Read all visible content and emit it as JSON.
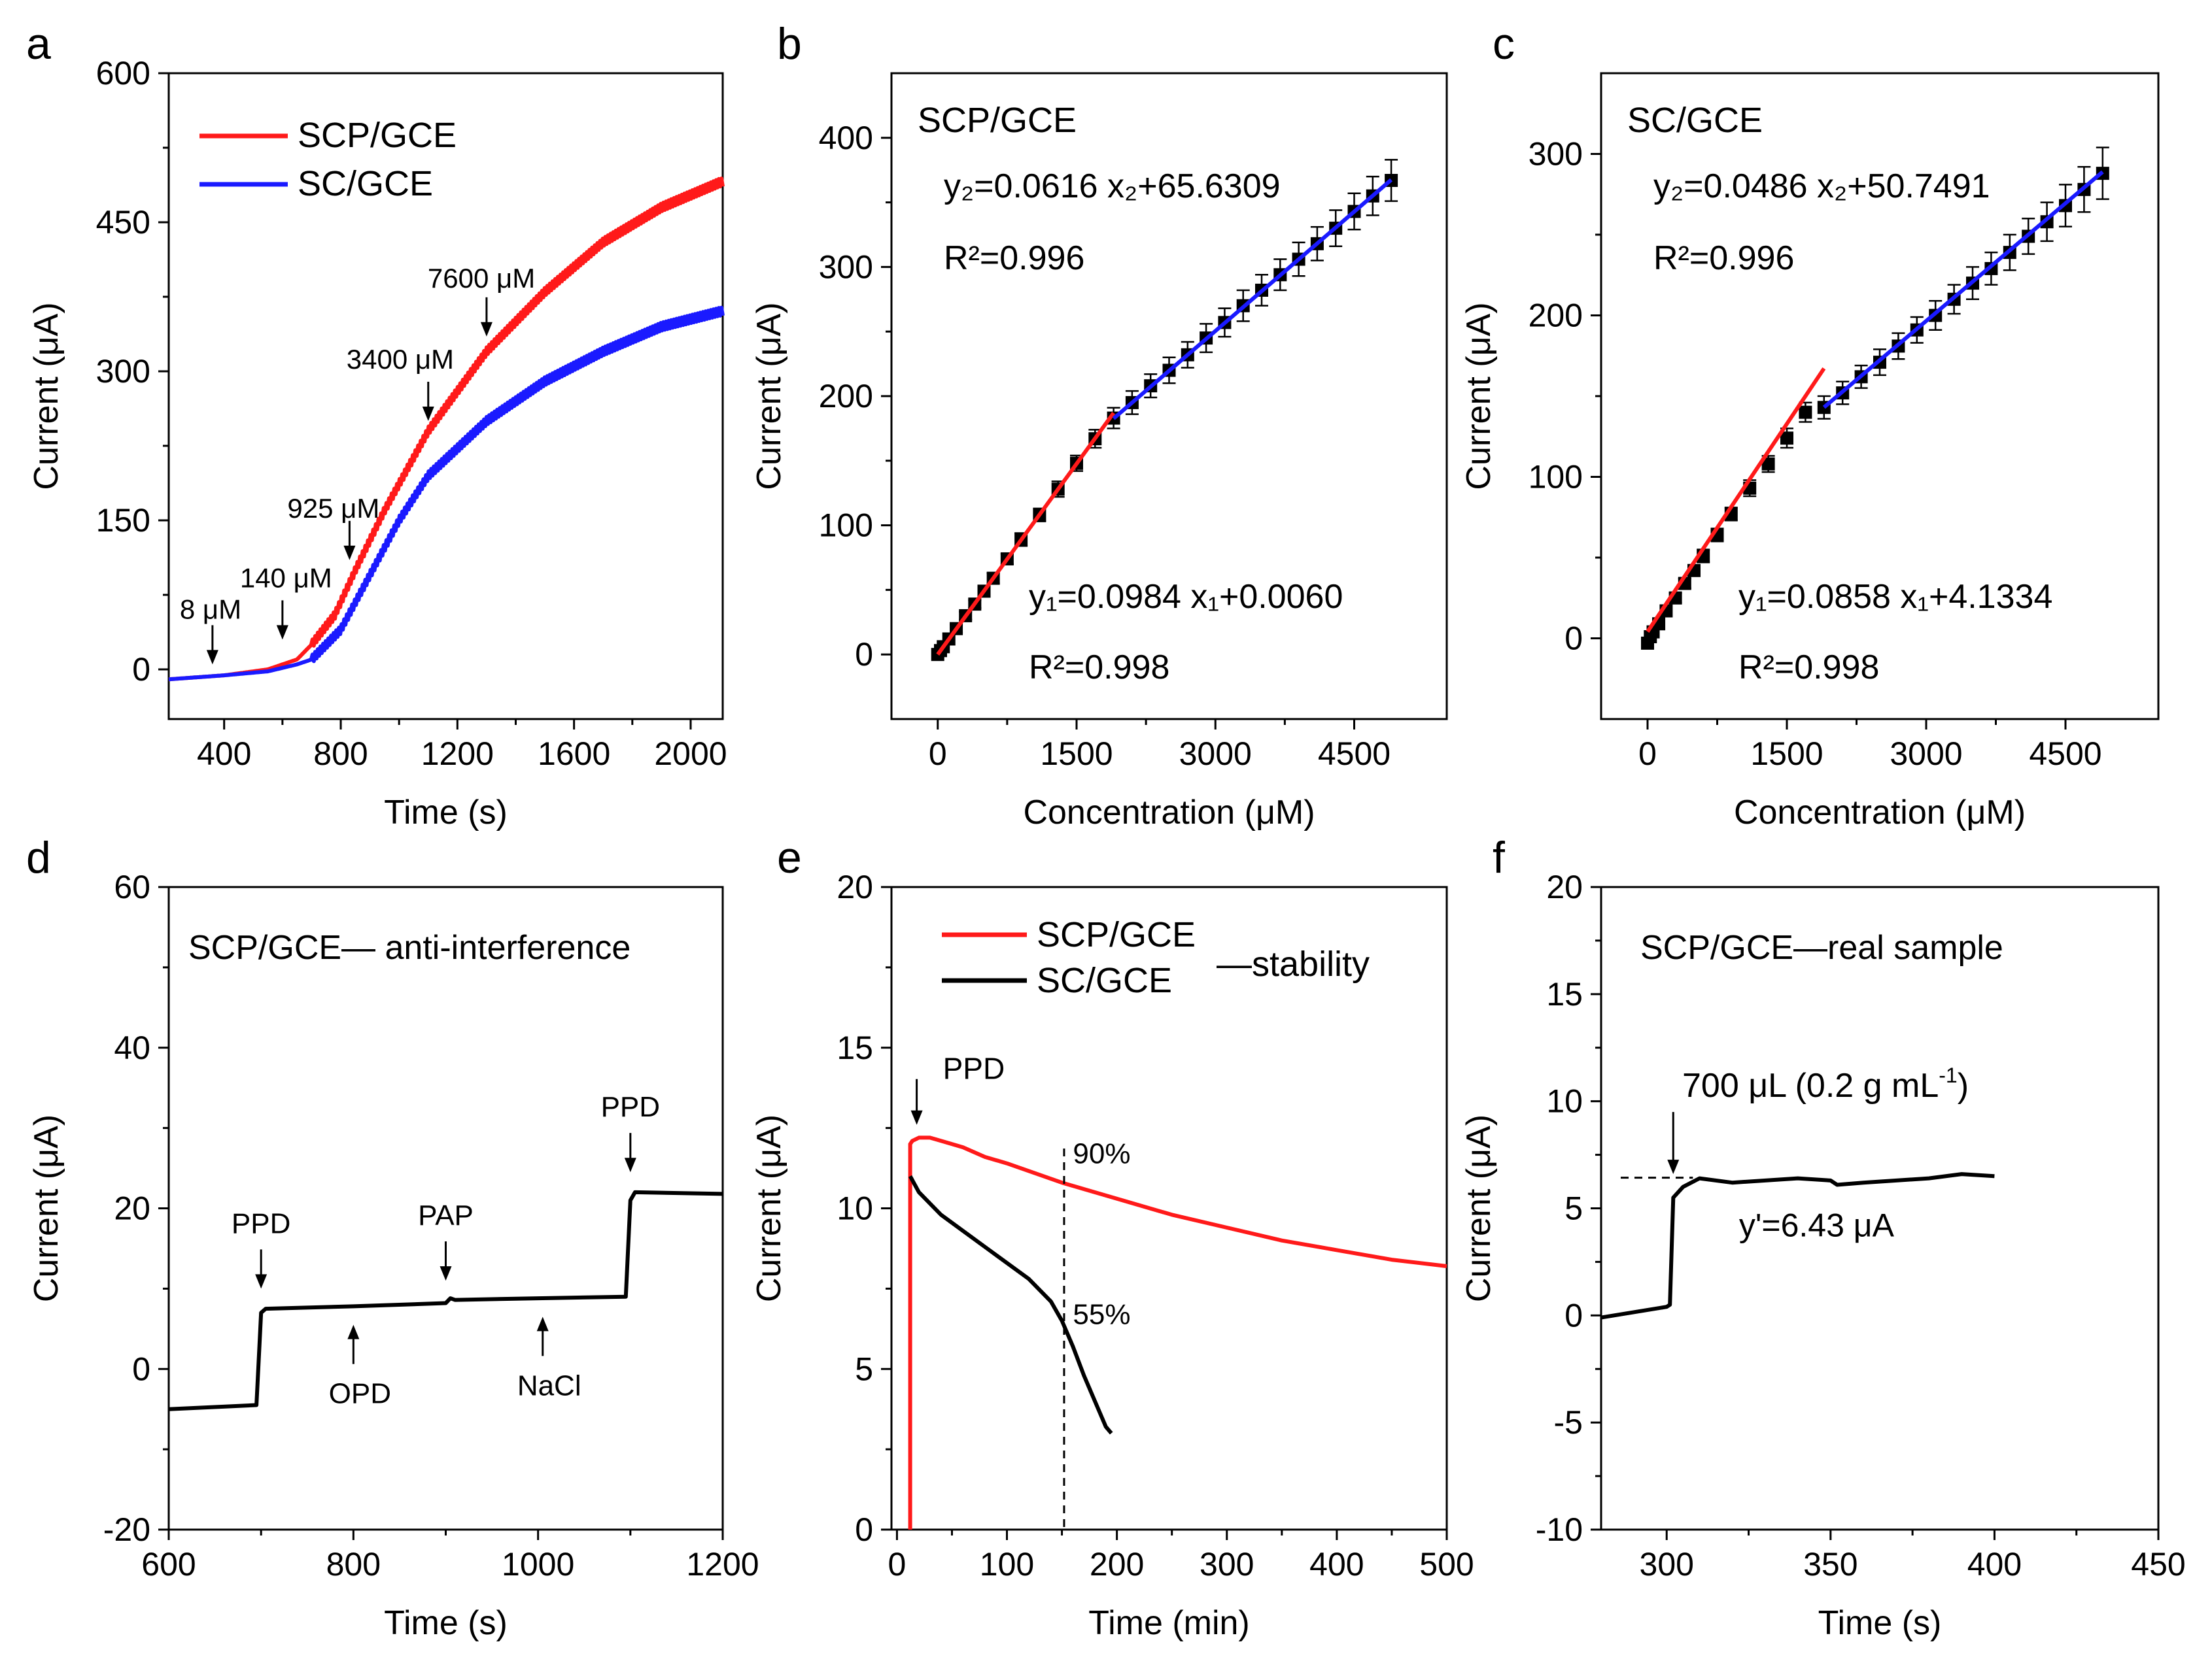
{
  "chart_data": [
    {
      "panel": "a",
      "type": "line",
      "xlabel": "Time (s)",
      "ylabel": "Current (μA)",
      "xlim": [
        210,
        2110
      ],
      "ylim": [
        -50,
        600
      ],
      "xticks": [
        400,
        800,
        1200,
        1600,
        2000
      ],
      "yticks": [
        0,
        150,
        300,
        450,
        600
      ],
      "series": [
        {
          "name": "SCP/GCE",
          "color": "#ff1a1a",
          "x": [
            210,
            400,
            550,
            650,
            700,
            780,
            850,
            950,
            1100,
            1300,
            1500,
            1700,
            1900,
            2100
          ],
          "y": [
            -10,
            -6,
            0,
            10,
            25,
            55,
            100,
            160,
            240,
            320,
            380,
            430,
            465,
            490
          ]
        },
        {
          "name": "SC/GCE",
          "color": "#1a1aff",
          "x": [
            210,
            400,
            550,
            650,
            700,
            800,
            900,
            1000,
            1100,
            1300,
            1500,
            1700,
            1900,
            2100
          ],
          "y": [
            -10,
            -6,
            -2,
            5,
            10,
            40,
            95,
            150,
            195,
            250,
            290,
            320,
            345,
            360
          ]
        }
      ],
      "annotations": [
        {
          "text": "8 μM",
          "x": 360,
          "y": 5
        },
        {
          "text": "140 μM",
          "x": 600,
          "y": 30
        },
        {
          "text": "925 μM",
          "x": 830,
          "y": 110
        },
        {
          "text": "3400 μM",
          "x": 1100,
          "y": 250
        },
        {
          "text": "7600 μM",
          "x": 1300,
          "y": 335
        }
      ]
    },
    {
      "panel": "b",
      "type": "scatter",
      "title": "SCP/GCE",
      "xlabel": "Concentration (μM)",
      "ylabel": "Current (μA)",
      "xlim": [
        -500,
        5500
      ],
      "ylim": [
        -50,
        450
      ],
      "xticks": [
        0,
        1500,
        3000,
        4500
      ],
      "yticks": [
        0,
        100,
        200,
        300,
        400
      ],
      "points": {
        "x": [
          0,
          30,
          60,
          120,
          200,
          300,
          400,
          500,
          600,
          750,
          900,
          1100,
          1300,
          1500,
          1700,
          1900,
          2100,
          2300,
          2500,
          2700,
          2900,
          3100,
          3300,
          3500,
          3700,
          3900,
          4100,
          4300,
          4500,
          4700,
          4900
        ],
        "y": [
          0,
          3,
          6,
          12,
          20,
          30,
          39,
          49,
          59,
          74,
          89,
          108,
          128,
          148,
          167,
          183,
          195,
          208,
          220,
          232,
          245,
          257,
          270,
          282,
          294,
          306,
          318,
          330,
          343,
          355,
          367
        ],
        "err": [
          1,
          1,
          2,
          2,
          3,
          3,
          3,
          4,
          4,
          4,
          5,
          5,
          6,
          6,
          7,
          8,
          9,
          9,
          10,
          10,
          11,
          11,
          12,
          12,
          12,
          13,
          13,
          14,
          14,
          15,
          16
        ]
      },
      "fits": [
        {
          "name": "y1",
          "color": "#ff1a1a",
          "slope": 0.0984,
          "intercept": 0.006,
          "x_range": [
            0,
            1900
          ]
        },
        {
          "name": "y2",
          "color": "#1a1aff",
          "slope": 0.0616,
          "intercept": 65.6309,
          "x_range": [
            1900,
            4900
          ]
        }
      ],
      "eq2": {
        "text": "y₂=0.0616 x₂+65.6309",
        "r2": "R²=0.996"
      },
      "eq1": {
        "text": "y₁=0.0984 x₁+0.0060",
        "r2": "R²=0.998"
      }
    },
    {
      "panel": "c",
      "type": "scatter",
      "title": "SC/GCE",
      "xlabel": "Concentration (μM)",
      "ylabel": "Current (μA)",
      "xlim": [
        -500,
        5500
      ],
      "ylim": [
        -50,
        350
      ],
      "xticks": [
        0,
        1500,
        3000,
        4500
      ],
      "yticks": [
        0,
        100,
        200,
        300
      ],
      "points": {
        "x": [
          0,
          30,
          60,
          120,
          200,
          300,
          400,
          500,
          600,
          750,
          900,
          1100,
          1300,
          1500,
          1700,
          1900,
          2100,
          2300,
          2500,
          2700,
          2900,
          3100,
          3300,
          3500,
          3700,
          3900,
          4100,
          4300,
          4500,
          4700,
          4900
        ],
        "y": [
          -3,
          1,
          4,
          9,
          17,
          25,
          34,
          42,
          51,
          64,
          77,
          93,
          108,
          124,
          140,
          143,
          152,
          162,
          171,
          181,
          191,
          200,
          210,
          220,
          229,
          239,
          249,
          258,
          268,
          278,
          288
        ],
        "err": [
          1,
          1,
          2,
          2,
          2,
          3,
          3,
          3,
          4,
          4,
          4,
          5,
          5,
          6,
          6,
          7,
          7,
          7,
          8,
          8,
          8,
          9,
          9,
          10,
          10,
          11,
          11,
          12,
          13,
          14,
          16
        ]
      },
      "fits": [
        {
          "name": "y1",
          "color": "#ff1a1a",
          "slope": 0.0858,
          "intercept": 4.1334,
          "x_range": [
            0,
            1900
          ]
        },
        {
          "name": "y2",
          "color": "#1a1aff",
          "slope": 0.0486,
          "intercept": 50.7491,
          "x_range": [
            1900,
            4900
          ]
        }
      ],
      "eq2": {
        "text": "y₂=0.0486 x₂+50.7491",
        "r2": "R²=0.996"
      },
      "eq1": {
        "text": "y₁=0.0858 x₁+4.1334",
        "r2": "R²=0.998"
      }
    },
    {
      "panel": "d",
      "type": "line",
      "title": "SCP/GCE— anti-interference",
      "xlabel": "Time (s)",
      "ylabel": "Current (μA)",
      "xlim": [
        600,
        1200
      ],
      "ylim": [
        -20,
        60
      ],
      "xticks": [
        600,
        800,
        1000,
        1200
      ],
      "yticks": [
        -20,
        0,
        20,
        40,
        60
      ],
      "series": [
        {
          "name": "SCP/GCE",
          "color": "#000000",
          "x": [
            600,
            695,
            700,
            705,
            800,
            900,
            905,
            910,
            1000,
            1095,
            1100,
            1105,
            1200
          ],
          "y": [
            -5,
            -4.5,
            7,
            7.5,
            7.8,
            8.2,
            8.8,
            8.6,
            8.8,
            9,
            21,
            22,
            21.8
          ]
        }
      ],
      "annotations": [
        {
          "text": "PPD",
          "x": 700,
          "y": 10,
          "pos": "above"
        },
        {
          "text": "OPD",
          "x": 800,
          "y": 5.5,
          "pos": "below"
        },
        {
          "text": "PAP",
          "x": 900,
          "y": 11,
          "pos": "above"
        },
        {
          "text": "NaCl",
          "x": 1005,
          "y": 6.5,
          "pos": "below"
        },
        {
          "text": "PPD",
          "x": 1100,
          "y": 24.5,
          "pos": "above"
        }
      ]
    },
    {
      "panel": "e",
      "type": "line",
      "title": "—stability",
      "xlabel": "Time (min)",
      "ylabel": "Current (μA)",
      "xlim": [
        -5,
        500
      ],
      "ylim": [
        0,
        20
      ],
      "xticks": [
        0,
        100,
        200,
        300,
        400,
        500
      ],
      "yticks": [
        0,
        5,
        10,
        15,
        20
      ],
      "series": [
        {
          "name": "SCP/GCE",
          "color": "#ff1a1a",
          "x": [
            12,
            12,
            14,
            20,
            30,
            40,
            60,
            80,
            100,
            150,
            200,
            250,
            300,
            350,
            400,
            450,
            500
          ],
          "y": [
            0,
            12.0,
            12.1,
            12.2,
            12.2,
            12.1,
            11.9,
            11.6,
            11.4,
            10.8,
            10.3,
            9.8,
            9.4,
            9.0,
            8.7,
            8.4,
            8.2
          ]
        },
        {
          "name": "SC/GCE",
          "color": "#000000",
          "x": [
            12,
            20,
            40,
            60,
            80,
            100,
            120,
            140,
            150,
            160,
            170,
            180,
            190,
            195
          ],
          "y": [
            11.0,
            10.5,
            9.8,
            9.3,
            8.8,
            8.3,
            7.8,
            7.1,
            6.5,
            5.7,
            4.8,
            4.0,
            3.2,
            3.0
          ]
        }
      ],
      "annotations": [
        {
          "text": "PPD",
          "x": 12,
          "y": 12.6
        },
        {
          "text": "90%",
          "x": 160,
          "y": 11.4
        },
        {
          "text": "55%",
          "x": 160,
          "y": 6.4
        }
      ],
      "vline_x": 152
    },
    {
      "panel": "f",
      "type": "line",
      "title": "SCP/GCE—real sample",
      "xlabel": "Time (s)",
      "ylabel": "Current (μA)",
      "xlim": [
        280,
        450
      ],
      "ylim": [
        -10,
        20
      ],
      "xticks": [
        300,
        350,
        400,
        450
      ],
      "yticks": [
        -10,
        -5,
        0,
        5,
        10,
        15,
        20
      ],
      "series": [
        {
          "name": "SCP/GCE",
          "color": "#000000",
          "x": [
            280,
            300,
            301,
            302,
            305,
            310,
            320,
            340,
            350,
            352,
            360,
            380,
            390,
            400
          ],
          "y": [
            -0.1,
            0.4,
            0.5,
            5.5,
            6.0,
            6.4,
            6.2,
            6.4,
            6.3,
            6.1,
            6.2,
            6.4,
            6.6,
            6.5
          ]
        }
      ],
      "hline_y": 6.43,
      "annotations": [
        {
          "text": "y'=6.43 μA",
          "x": 352,
          "y": 4.0
        }
      ]
    }
  ],
  "labels": {
    "panel_a": "a",
    "panel_b": "b",
    "panel_c": "c",
    "panel_d": "d",
    "panel_e": "e",
    "panel_f": "f",
    "legend_a_1": "SCP/GCE",
    "legend_a_2": "SC/GCE",
    "legend_e_1": "SCP/GCE",
    "legend_e_2": "SC/GCE",
    "f_addition_text": "700 μL (0.2 g mL",
    "f_addition_sup": "-1",
    "f_addition_close": ")"
  }
}
